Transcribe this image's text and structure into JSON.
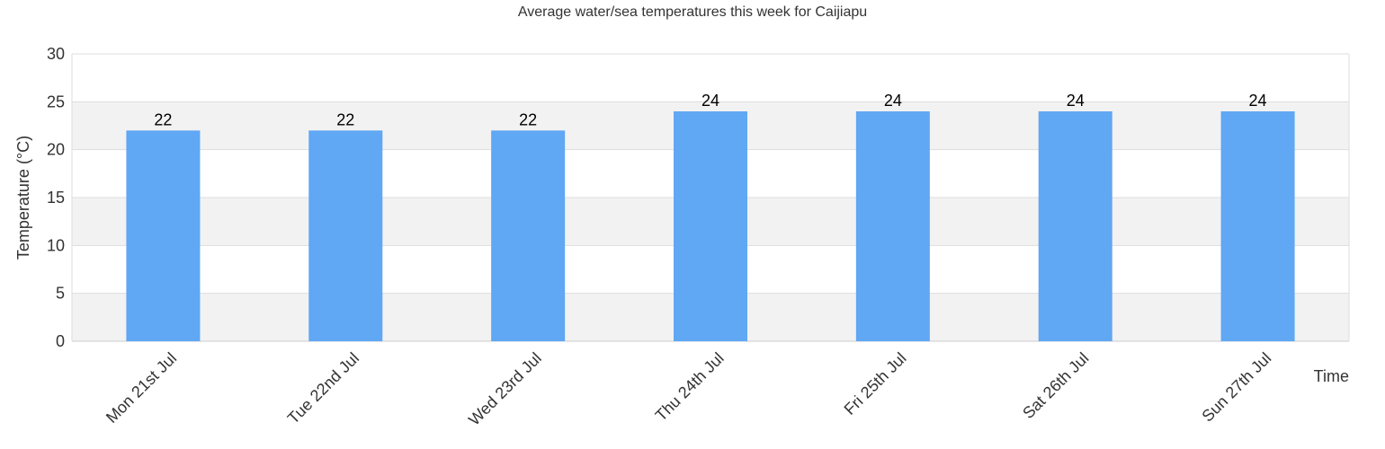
{
  "chart_data": {
    "type": "bar",
    "title": "Average water/sea temperatures this week for Caijiapu",
    "xlabel": "Time",
    "ylabel": "Temperature (°C)",
    "ylim": [
      0,
      30
    ],
    "yticks": [
      0,
      5,
      10,
      15,
      20,
      25,
      30
    ],
    "categories": [
      "Mon 21st Jul",
      "Tue 22nd Jul",
      "Wed 23rd Jul",
      "Thu 24th Jul",
      "Fri 25th Jul",
      "Sat 26th Jul",
      "Sun 27th Jul"
    ],
    "values": [
      22,
      22,
      22,
      24,
      24,
      24,
      24
    ],
    "data_labels": true,
    "grid": true,
    "colors": {
      "bar": "#60a7f4",
      "band": "#f2f2f2",
      "gridline": "#dddddd",
      "axis": "#cccccc"
    }
  }
}
